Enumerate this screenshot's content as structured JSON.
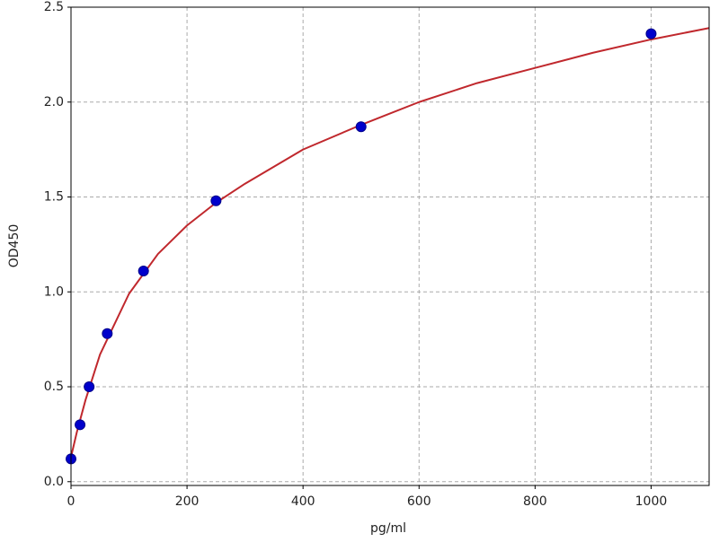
{
  "chart_data": {
    "type": "scatter",
    "x_label": "pg/ml",
    "y_label": "OD450",
    "xlim": [
      0,
      1100
    ],
    "ylim": [
      -0.02,
      2.5
    ],
    "xticks": [
      0,
      200,
      400,
      600,
      800,
      1000
    ],
    "yticks": [
      {
        "value": 0,
        "label": "0.0"
      },
      0.5,
      {
        "value": 1,
        "label": "1.0"
      },
      1.5,
      {
        "value": 2,
        "label": "2.0"
      },
      2.5
    ],
    "grid": true,
    "series": [
      {
        "type": "scatter",
        "color": "#0000cc",
        "x": [
          0,
          15.6,
          31.25,
          62.5,
          125,
          250,
          500,
          1000
        ],
        "values": [
          0.12,
          0.3,
          0.5,
          0.78,
          1.11,
          1.48,
          1.87,
          2.36
        ]
      },
      {
        "type": "line",
        "color": "#c0282d",
        "x": [
          0,
          10,
          25,
          50,
          100,
          150,
          200,
          250,
          300,
          400,
          500,
          600,
          700,
          800,
          900,
          1000,
          1100
        ],
        "values": [
          0.13,
          0.26,
          0.43,
          0.67,
          0.99,
          1.2,
          1.35,
          1.47,
          1.57,
          1.75,
          1.88,
          2.0,
          2.1,
          2.18,
          2.26,
          2.33,
          2.39
        ]
      }
    ]
  }
}
